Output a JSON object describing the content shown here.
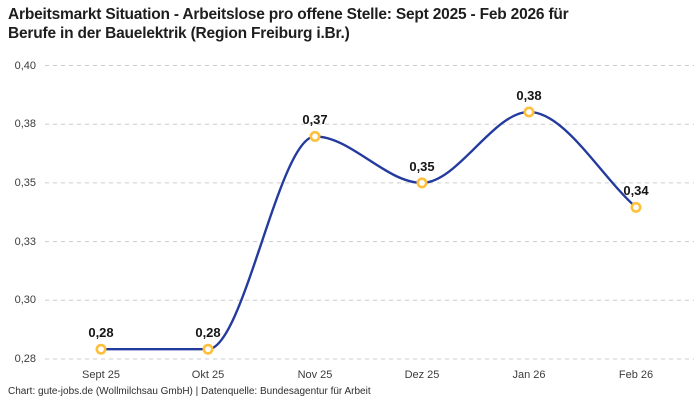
{
  "header": {
    "title_line1": "Arbeitsmarkt Situation - Arbeitslose pro offene Stelle: Sept 2025 - Feb 2026 für",
    "title_line2": "Berufe in der Bauelektrik (Region Freiburg i.Br.)"
  },
  "chart_data": {
    "type": "line",
    "title": "Arbeitsmarkt Situation - Arbeitslose pro offene Stelle: Sept 2025 - Feb 2026 für Berufe in der Bauelektrik (Region Freiburg i.Br.)",
    "categories": [
      "Sept 25",
      "Okt 25",
      "Nov 25",
      "Dez 25",
      "Jan 26",
      "Feb 26"
    ],
    "values": [
      0.28,
      0.28,
      0.37,
      0.35,
      0.38,
      0.34
    ],
    "point_labels": [
      "0,28",
      "0,28",
      "0,37",
      "0,35",
      "0,38",
      "0,34"
    ],
    "values_precise": [
      0.284,
      0.284,
      0.371,
      0.352,
      0.381,
      0.342
    ],
    "ylim": [
      0.28,
      0.4
    ],
    "y_ticks": [
      {
        "label": "0,40",
        "value": 0.4
      },
      {
        "label": "0,38",
        "value": 0.376
      },
      {
        "label": "0,35",
        "value": 0.352
      },
      {
        "label": "0,33",
        "value": 0.328
      },
      {
        "label": "0,30",
        "value": 0.304
      },
      {
        "label": "0,28",
        "value": 0.28
      }
    ],
    "grid": "horizontal-dashed",
    "legend": "none",
    "curve": "monotone",
    "line_color": "#233A9E",
    "marker_stroke_color": "#FDC03C",
    "marker_fill_color": "#FFFFFF",
    "grid_color": "#CDCDCD",
    "label_color": "#151515"
  },
  "footer": {
    "text": "Chart: gute-jobs.de (Wollmilchsau GmbH) | Datenquelle: Bundesagentur für Arbeit"
  }
}
